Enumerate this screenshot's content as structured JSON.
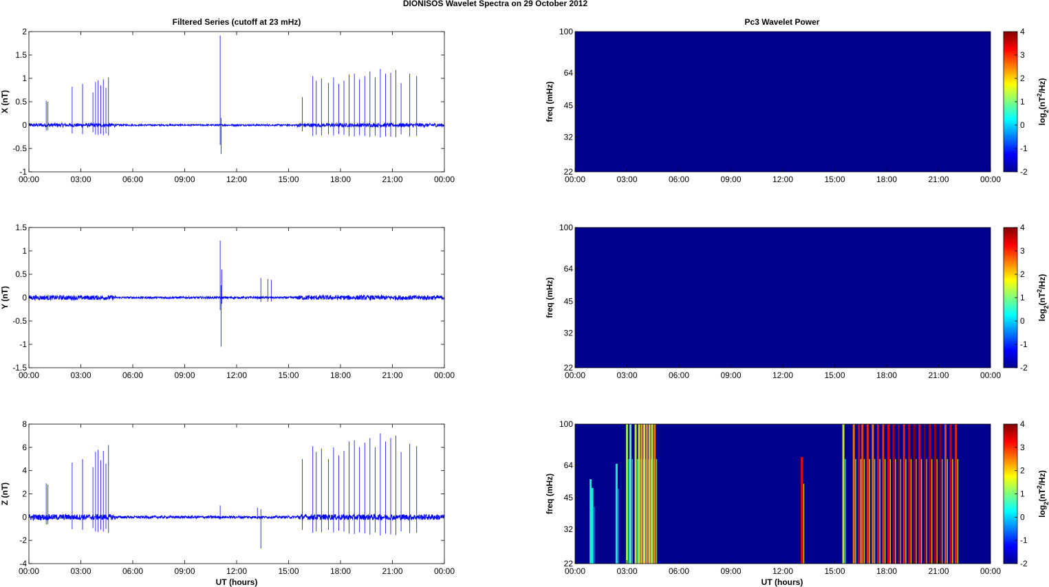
{
  "figure": {
    "title": "DIONISOS Wavelet Spectra on 29 October   2012",
    "left_title": "Filtered Series (cutoff at 23 mHz)",
    "right_title": "Pc3 Wavelet Power",
    "xlabel": "UT (hours)"
  },
  "colors": {
    "trace": "#0000ff",
    "background_power": "#00008f",
    "axes": "#000000"
  },
  "chart_data": [
    {
      "type": "line",
      "component": "X",
      "ylabel": "X (nT)",
      "ylim": [
        -1,
        2
      ],
      "yticks": [
        "-1",
        "-0.5",
        "0",
        "0.5",
        "1",
        "1.5",
        "2"
      ],
      "xticks": [
        "00:00",
        "03:00",
        "06:00",
        "09:00",
        "12:00",
        "15:00",
        "18:00",
        "21:00",
        "00:00"
      ],
      "xlim_hours": [
        0,
        24
      ],
      "noise_amplitude_nT": 0.04,
      "grid": false,
      "spikes": [
        [
          1.0,
          0.52
        ],
        [
          1.1,
          0.5
        ],
        [
          2.5,
          0.82
        ],
        [
          3.1,
          0.88
        ],
        [
          3.7,
          0.7
        ],
        [
          3.85,
          0.92
        ],
        [
          4.0,
          0.96
        ],
        [
          4.15,
          0.85
        ],
        [
          4.3,
          0.98
        ],
        [
          4.45,
          0.8
        ],
        [
          4.6,
          1.02
        ],
        [
          11.05,
          1.92
        ],
        [
          11.1,
          -0.62
        ],
        [
          15.8,
          0.6
        ],
        [
          16.4,
          1.05
        ],
        [
          16.6,
          0.95
        ],
        [
          16.9,
          1.0
        ],
        [
          17.3,
          0.9
        ],
        [
          17.6,
          1.02
        ],
        [
          17.9,
          0.88
        ],
        [
          18.2,
          0.95
        ],
        [
          18.5,
          1.08
        ],
        [
          18.8,
          1.1
        ],
        [
          19.1,
          0.98
        ],
        [
          19.4,
          1.05
        ],
        [
          19.7,
          1.15
        ],
        [
          20.0,
          1.02
        ],
        [
          20.3,
          1.2
        ],
        [
          20.6,
          1.1
        ],
        [
          20.9,
          1.12
        ],
        [
          21.2,
          1.18
        ],
        [
          21.5,
          0.9
        ],
        [
          22.0,
          1.1
        ],
        [
          22.4,
          1.05
        ]
      ]
    },
    {
      "type": "line",
      "component": "Y",
      "ylabel": "Y (nT)",
      "ylim": [
        -1.5,
        1.5
      ],
      "yticks": [
        "-1.5",
        "-1",
        "-0.5",
        "0",
        "0.5",
        "1",
        "1.5"
      ],
      "xticks": [
        "00:00",
        "03:00",
        "06:00",
        "09:00",
        "12:00",
        "15:00",
        "18:00",
        "21:00",
        "00:00"
      ],
      "xlim_hours": [
        0,
        24
      ],
      "noise_amplitude_nT": 0.05,
      "grid": false,
      "spikes": [
        [
          11.05,
          1.22
        ],
        [
          11.1,
          -1.05
        ],
        [
          11.15,
          0.6
        ],
        [
          13.4,
          0.42
        ],
        [
          13.8,
          0.4
        ],
        [
          14.0,
          0.38
        ]
      ]
    },
    {
      "type": "line",
      "component": "Z",
      "ylabel": "Z (nT)",
      "ylim": [
        -4,
        8
      ],
      "yticks": [
        "-4",
        "-2",
        "0",
        "2",
        "4",
        "6",
        "8"
      ],
      "xticks": [
        "00:00",
        "03:00",
        "06:00",
        "09:00",
        "12:00",
        "15:00",
        "18:00",
        "21:00",
        "00:00"
      ],
      "xlim_hours": [
        0,
        24
      ],
      "noise_amplitude_nT": 0.25,
      "grid": false,
      "spikes": [
        [
          1.0,
          2.9
        ],
        [
          1.1,
          2.8
        ],
        [
          2.5,
          4.7
        ],
        [
          3.1,
          5.0
        ],
        [
          3.7,
          4.3
        ],
        [
          3.85,
          5.6
        ],
        [
          4.0,
          5.8
        ],
        [
          4.15,
          4.9
        ],
        [
          4.3,
          5.7
        ],
        [
          4.45,
          4.6
        ],
        [
          4.6,
          6.2
        ],
        [
          11.05,
          1.0
        ],
        [
          13.2,
          0.8
        ],
        [
          13.4,
          -2.7
        ],
        [
          15.8,
          5.0
        ],
        [
          16.4,
          6.1
        ],
        [
          16.6,
          5.6
        ],
        [
          16.9,
          5.9
        ],
        [
          17.3,
          5.0
        ],
        [
          17.6,
          6.0
        ],
        [
          17.9,
          5.3
        ],
        [
          18.2,
          5.7
        ],
        [
          18.5,
          6.5
        ],
        [
          18.8,
          6.6
        ],
        [
          19.1,
          6.0
        ],
        [
          19.4,
          6.4
        ],
        [
          19.7,
          6.8
        ],
        [
          20.0,
          6.0
        ],
        [
          20.3,
          7.2
        ],
        [
          20.6,
          6.5
        ],
        [
          20.9,
          6.8
        ],
        [
          21.2,
          7.0
        ],
        [
          21.5,
          5.6
        ],
        [
          22.0,
          6.3
        ],
        [
          22.4,
          6.1
        ]
      ]
    },
    {
      "type": "heatmap",
      "component": "X",
      "ylabel": "freq (mHz)",
      "ylim": [
        22,
        100
      ],
      "y_scale": "log",
      "yticks": [
        "22",
        "32",
        "45",
        "64",
        "100"
      ],
      "xticks": [
        "00:00",
        "03:00",
        "06:00",
        "09:00",
        "12:00",
        "15:00",
        "18:00",
        "21:00",
        "00:00"
      ],
      "clim": [
        -2,
        4
      ],
      "cbar_ticks": [
        "-2",
        "-1",
        "0",
        "1",
        "2",
        "3",
        "4"
      ],
      "background_level": -2,
      "bursts": []
    },
    {
      "type": "heatmap",
      "component": "Y",
      "ylabel": "freq (mHz)",
      "ylim": [
        22,
        100
      ],
      "y_scale": "log",
      "yticks": [
        "22",
        "32",
        "45",
        "64",
        "100"
      ],
      "xticks": [
        "00:00",
        "03:00",
        "06:00",
        "09:00",
        "12:00",
        "15:00",
        "18:00",
        "21:00",
        "00:00"
      ],
      "clim": [
        -2,
        4
      ],
      "cbar_ticks": [
        "-2",
        "-1",
        "0",
        "1",
        "2",
        "3",
        "4"
      ],
      "background_level": -2,
      "bursts": []
    },
    {
      "type": "heatmap",
      "component": "Z",
      "ylabel": "freq (mHz)",
      "ylim": [
        22,
        100
      ],
      "y_scale": "log",
      "yticks": [
        "22",
        "32",
        "45",
        "64",
        "100"
      ],
      "xticks": [
        "00:00",
        "03:00",
        "06:00",
        "09:00",
        "12:00",
        "15:00",
        "18:00",
        "21:00",
        "00:00"
      ],
      "clim": [
        -2,
        4
      ],
      "cbar_ticks": [
        "-2",
        "-1",
        "0",
        "1",
        "2",
        "3",
        "4"
      ],
      "background_level": -2,
      "bursts": [
        [
          0.9,
          0.5,
          55
        ],
        [
          1.0,
          0.4,
          50
        ],
        [
          2.4,
          0.4,
          65
        ],
        [
          3.0,
          1.2,
          100
        ],
        [
          3.2,
          1.0,
          100
        ],
        [
          3.5,
          1.5,
          100
        ],
        [
          3.7,
          1.6,
          100
        ],
        [
          3.85,
          2.2,
          100
        ],
        [
          4.0,
          1.8,
          100
        ],
        [
          4.15,
          2.4,
          100
        ],
        [
          4.3,
          2.0,
          100
        ],
        [
          4.45,
          1.5,
          100
        ],
        [
          4.6,
          2.5,
          100
        ],
        [
          13.1,
          3.2,
          70
        ],
        [
          15.5,
          1.5,
          100
        ],
        [
          16.1,
          2.5,
          100
        ],
        [
          16.4,
          3.4,
          100
        ],
        [
          16.6,
          2.8,
          100
        ],
        [
          16.9,
          3.0,
          100
        ],
        [
          17.2,
          2.5,
          100
        ],
        [
          17.5,
          3.2,
          100
        ],
        [
          17.8,
          2.9,
          100
        ],
        [
          18.1,
          3.3,
          100
        ],
        [
          18.4,
          3.6,
          100
        ],
        [
          18.7,
          3.8,
          100
        ],
        [
          19.0,
          3.0,
          100
        ],
        [
          19.3,
          3.5,
          100
        ],
        [
          19.6,
          3.9,
          100
        ],
        [
          19.9,
          3.2,
          100
        ],
        [
          20.2,
          4.0,
          100
        ],
        [
          20.5,
          3.6,
          100
        ],
        [
          20.8,
          3.8,
          100
        ],
        [
          21.1,
          3.9,
          100
        ],
        [
          21.4,
          2.8,
          100
        ],
        [
          21.7,
          3.4,
          100
        ],
        [
          22.0,
          3.0,
          100
        ]
      ]
    }
  ]
}
